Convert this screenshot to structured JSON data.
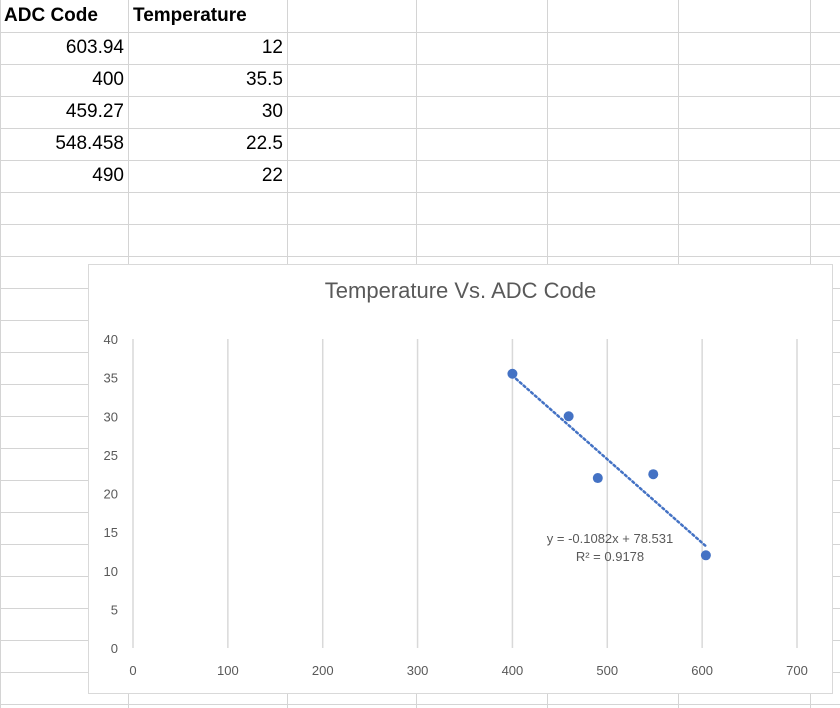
{
  "sheet": {
    "headers": [
      "ADC Code",
      "Temperature"
    ],
    "rows": [
      [
        "603.94",
        "12"
      ],
      [
        "400",
        "35.5"
      ],
      [
        "459.27",
        "30"
      ],
      [
        "548.458",
        "22.5"
      ],
      [
        "490",
        "22"
      ]
    ]
  },
  "chart_data": {
    "type": "scatter",
    "title": "Temperature Vs. ADC Code",
    "xlabel": "",
    "ylabel": "",
    "xlim": [
      0,
      700
    ],
    "ylim": [
      0,
      40
    ],
    "x_ticks": [
      0,
      100,
      200,
      300,
      400,
      500,
      600,
      700
    ],
    "y_ticks": [
      0,
      5,
      10,
      15,
      20,
      25,
      30,
      35,
      40
    ],
    "points": [
      {
        "x": 603.94,
        "y": 12
      },
      {
        "x": 400,
        "y": 35.5
      },
      {
        "x": 459.27,
        "y": 30
      },
      {
        "x": 548.458,
        "y": 22.5
      },
      {
        "x": 490,
        "y": 22
      }
    ],
    "trendline": {
      "type": "linear",
      "slope": -0.1082,
      "intercept": 78.531,
      "equation": "y = -0.1082x + 78.531",
      "r_squared": "R² = 0.9178",
      "style": "dotted"
    },
    "grid": "vertical",
    "legend": "none",
    "colors": {
      "marker": "#4472C4",
      "trendline": "#4472C4",
      "gridline": "#d9d9d9"
    }
  }
}
